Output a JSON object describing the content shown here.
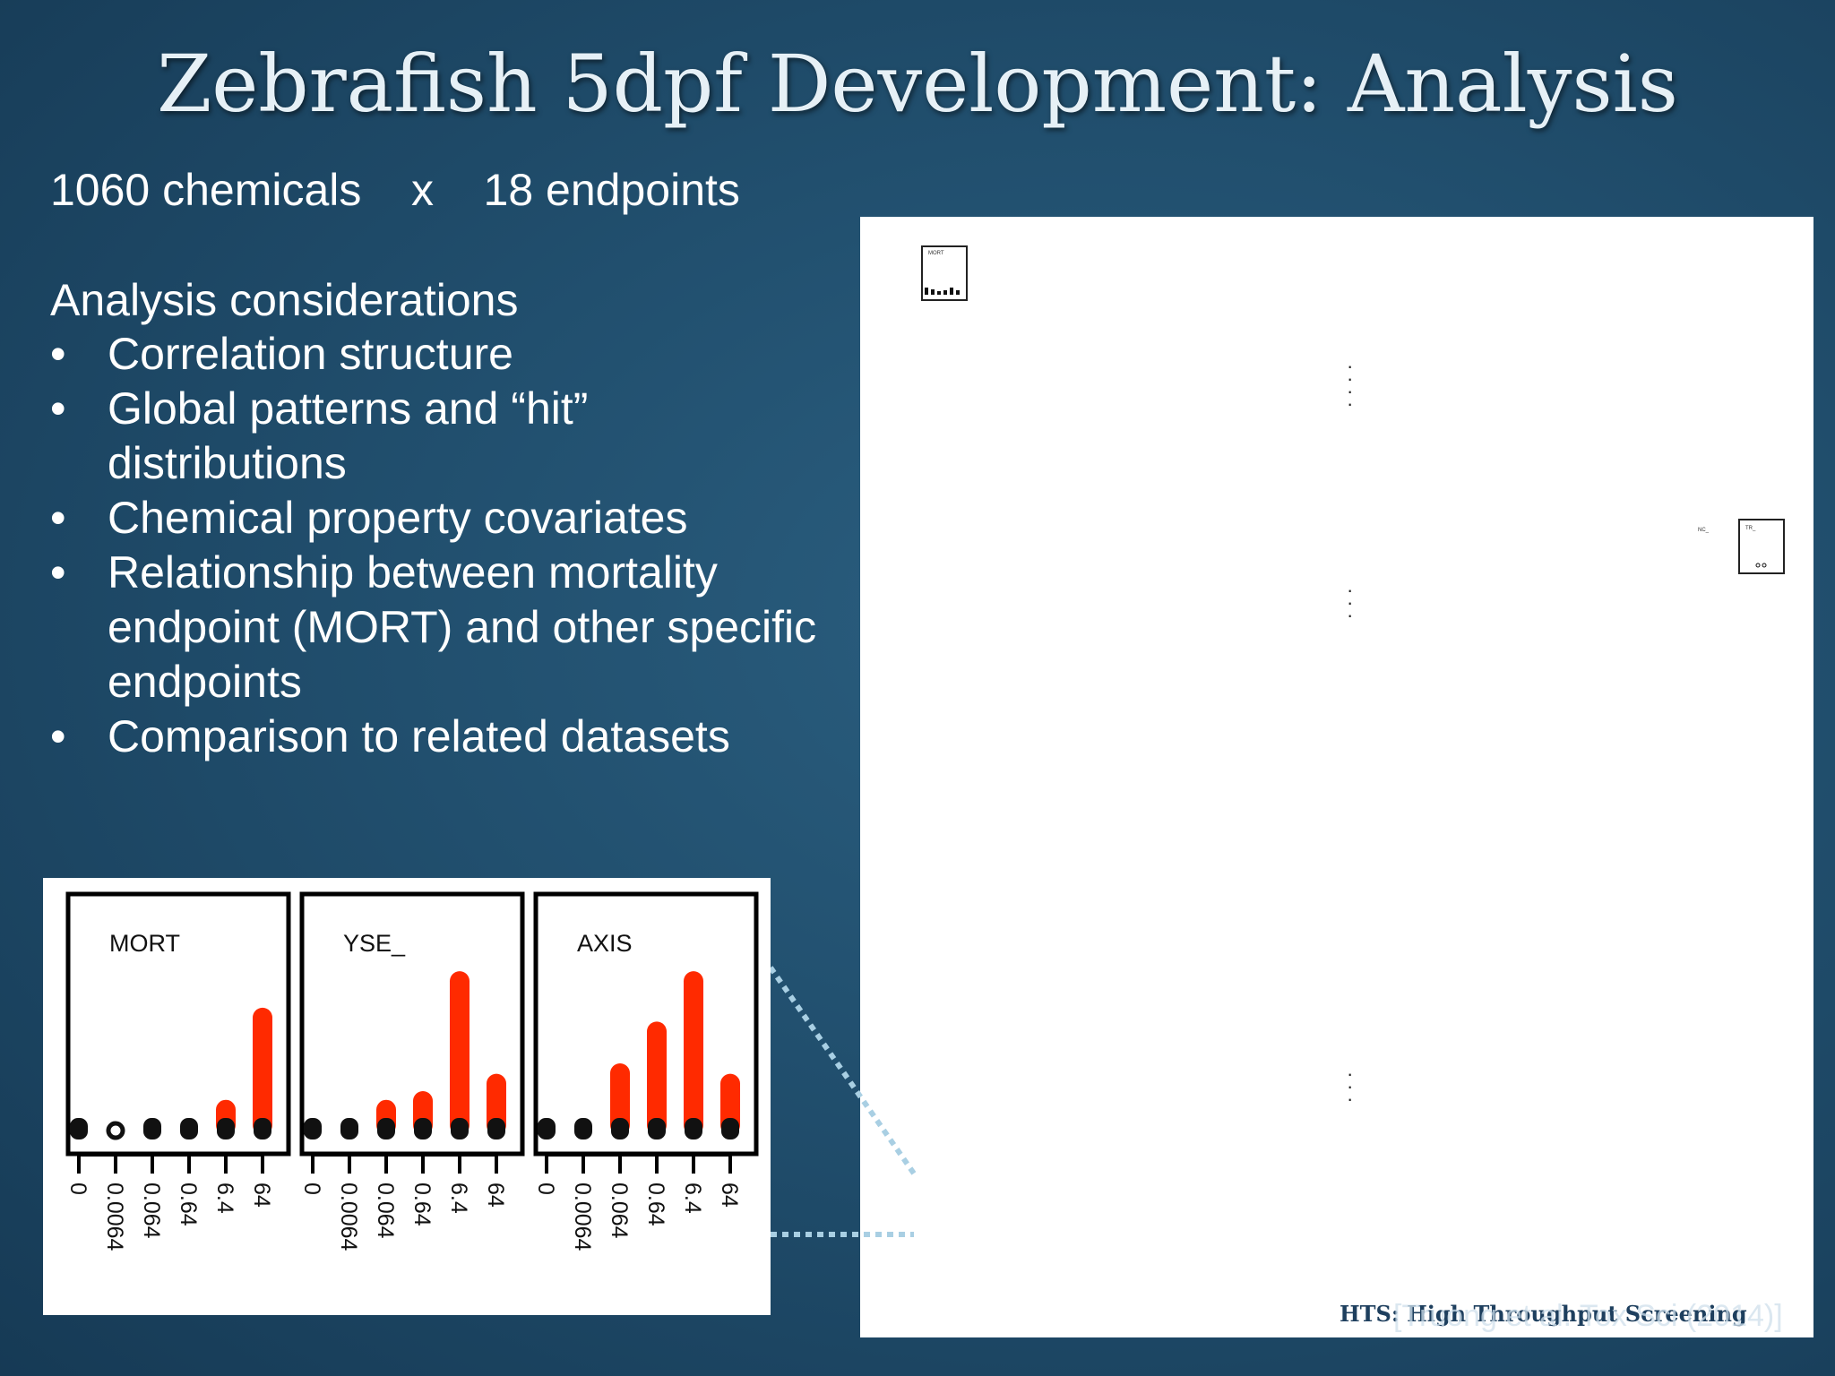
{
  "slide": {
    "title": "Zebrafish 5dpf Development: Analysis",
    "subtitle": "1060 chemicals    x    18 endpoints",
    "analysis_heading": "Analysis considerations",
    "bullets": [
      [
        "Correlation structure"
      ],
      [
        "Global patterns and “hit”",
        "distributions"
      ],
      [
        "Chemical property covariates"
      ],
      [
        "Relationship between mortality",
        "endpoint (MORT) and other specific",
        "endpoints"
      ],
      [
        "Comparison to related datasets"
      ]
    ],
    "bullet_symbol": "•"
  },
  "right_panel": {
    "thumb_mort_label": "MORT",
    "thumb_ttt_label": "TR_",
    "thumb_side_label": "NC_",
    "footer_note": "HTS: High Throughput Screening",
    "citation": "[Truong et al. Tox Sci (2014)]",
    "colors": {
      "background": "#ffffff",
      "frame": "#222222"
    }
  },
  "chart_data": {
    "type": "bar",
    "concentrations": [
      "0",
      "0.0064",
      "0.064",
      "0.64",
      "6.4",
      "64"
    ],
    "series_color": "#ff2a00",
    "marker_color": "#111111",
    "panels": [
      {
        "label": "MORT",
        "hit_fraction": [
          0,
          0,
          0,
          0,
          0.12,
          0.65
        ],
        "markers": [
          true,
          false,
          true,
          true,
          true,
          true
        ]
      },
      {
        "label": "YSE_",
        "hit_fraction": [
          0,
          0,
          0.12,
          0.17,
          0.86,
          0.27
        ],
        "markers": [
          true,
          true,
          true,
          true,
          true,
          true
        ]
      },
      {
        "label": "AXIS",
        "hit_fraction": [
          0,
          0,
          0.33,
          0.57,
          0.86,
          0.27
        ],
        "markers": [
          true,
          true,
          true,
          true,
          true,
          true
        ]
      }
    ]
  }
}
